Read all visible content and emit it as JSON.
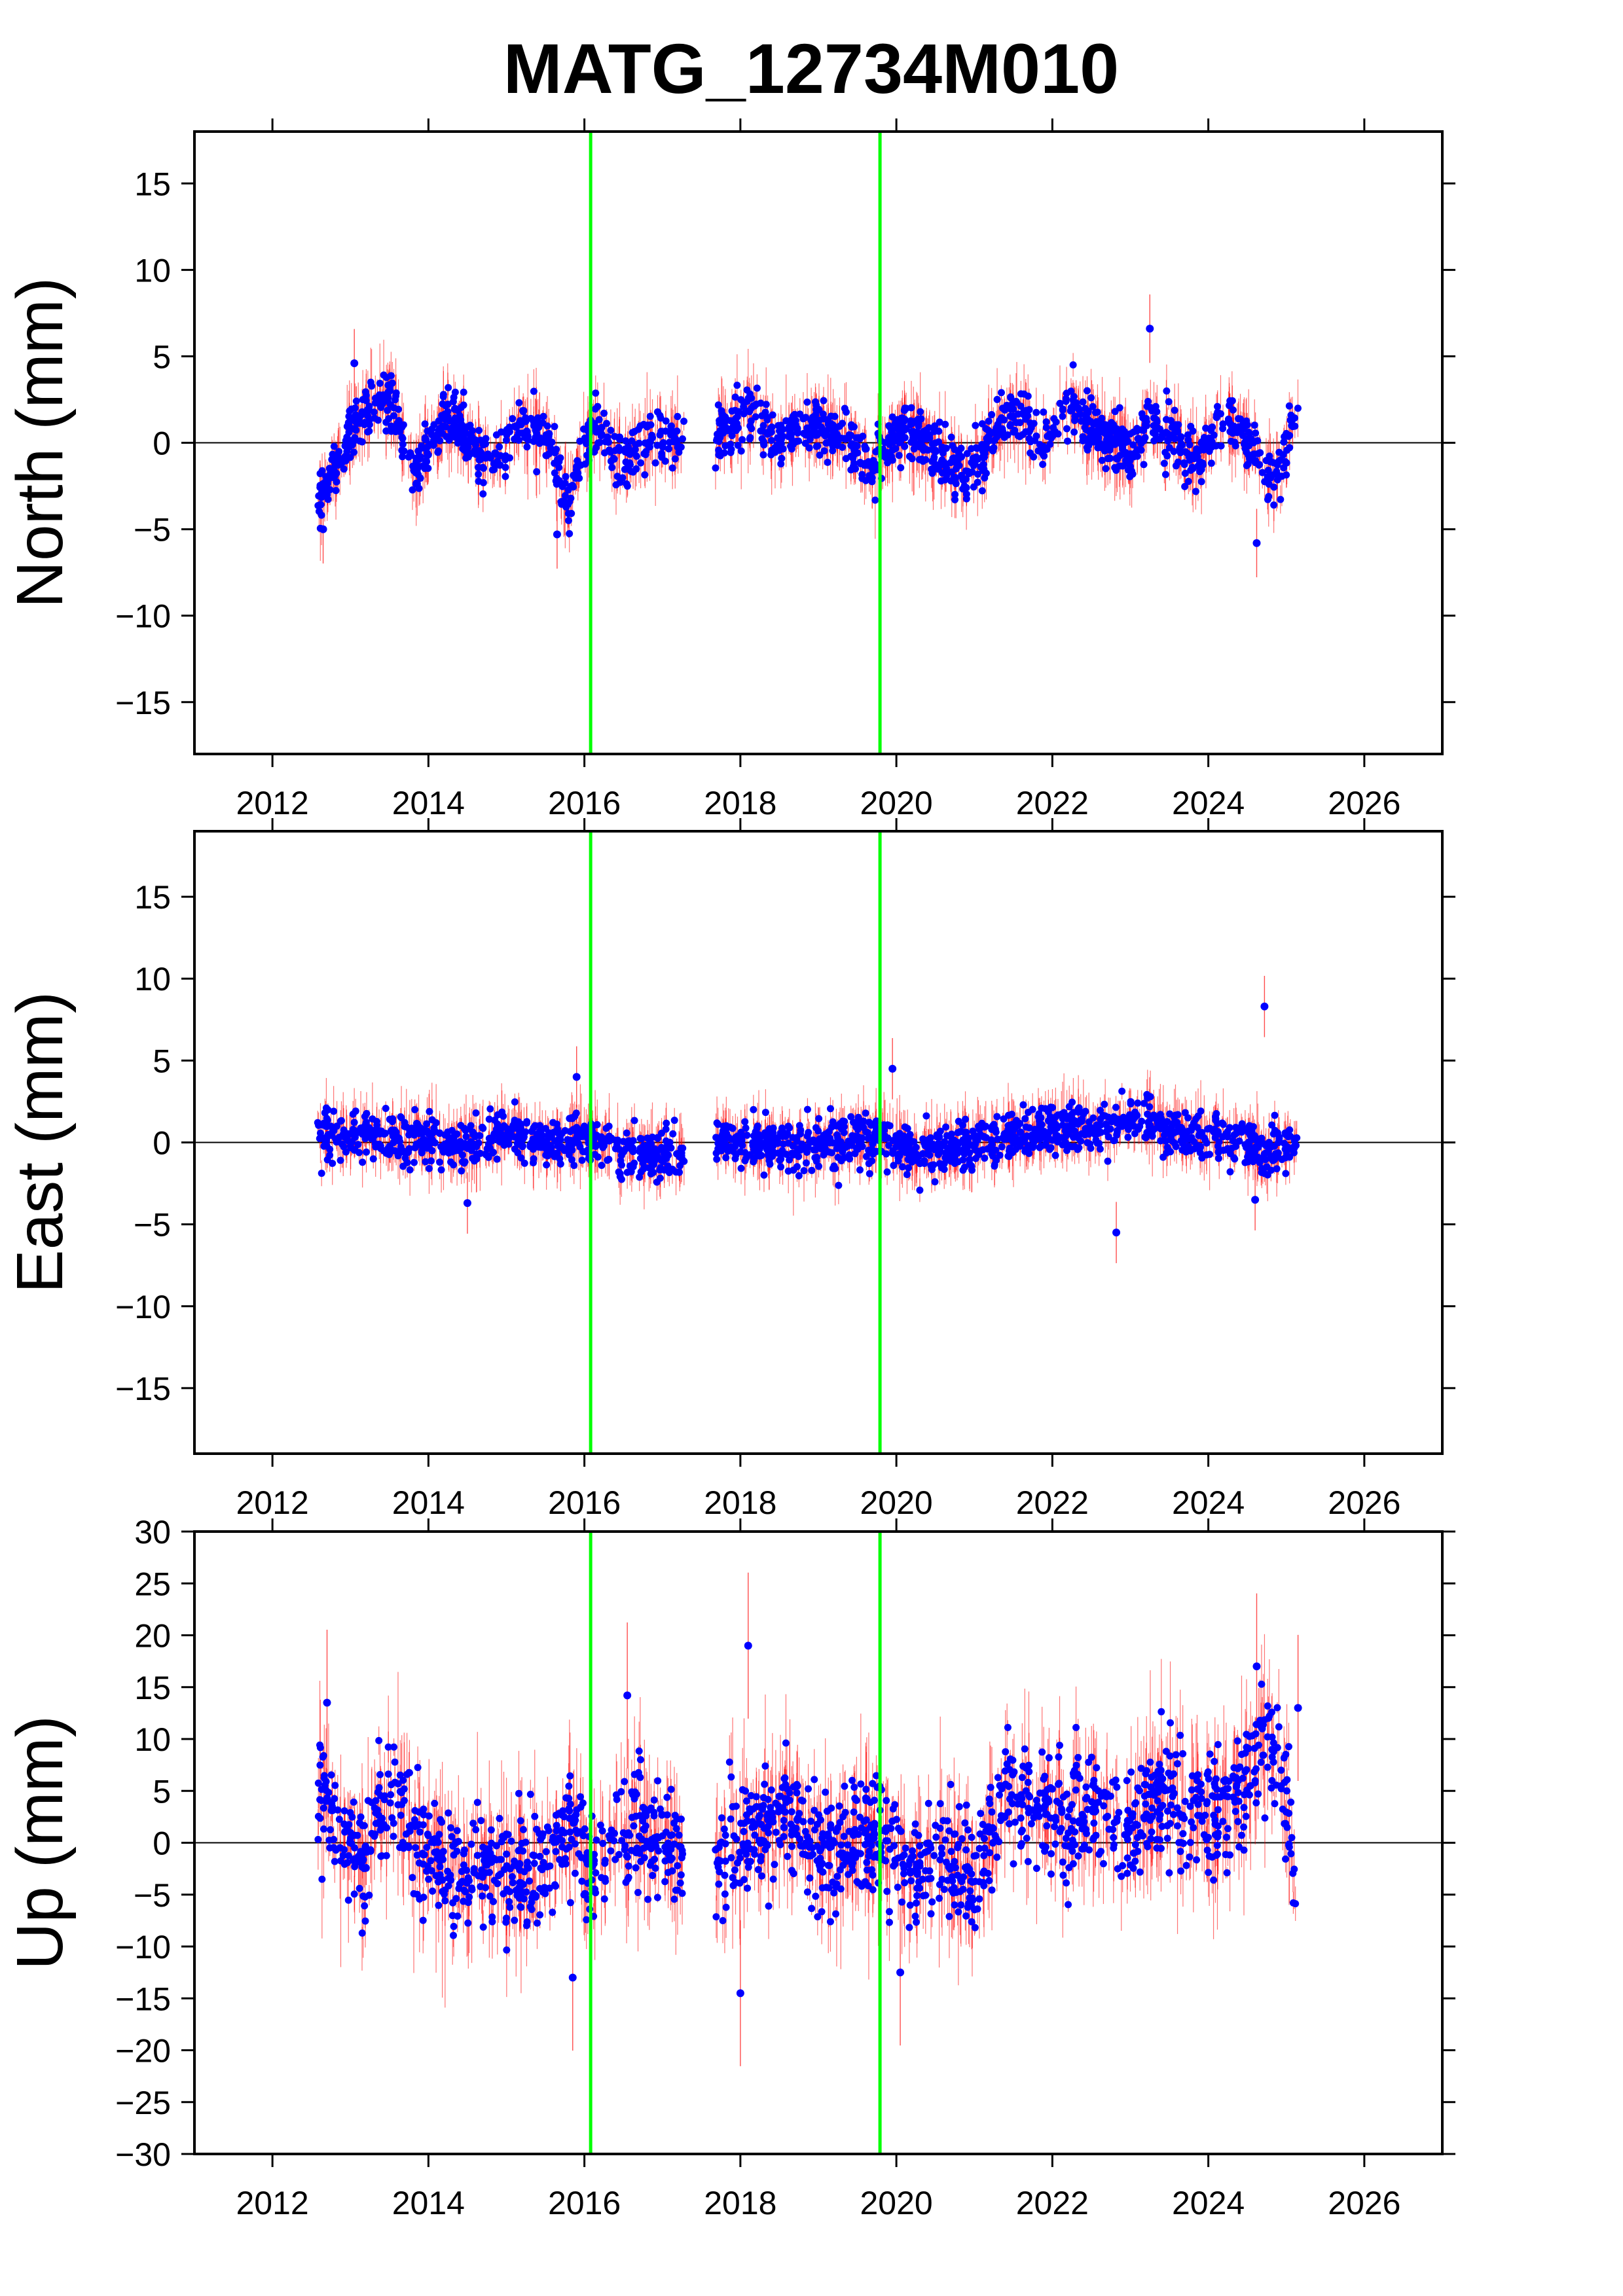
{
  "title": "MATG_12734M010",
  "colors": {
    "point": "#0000ff",
    "error_bar": "#ff0000",
    "event_line": "#00ff00",
    "zero_line": "#000000",
    "frame": "#000000"
  },
  "chart_data": [
    {
      "type": "scatter",
      "ylabel": "North (mm)",
      "xlim": [
        2011.0,
        2027.0
      ],
      "ylim": [
        -18,
        18
      ],
      "xticks": [
        2012,
        2014,
        2016,
        2018,
        2020,
        2022,
        2024,
        2026
      ],
      "yticks": [
        -15,
        -10,
        -5,
        0,
        5,
        10,
        15
      ],
      "event_lines_x": [
        2016.08,
        2019.79
      ],
      "data_span": [
        2012.58,
        2025.15
      ],
      "data_gap": [
        2017.28,
        2017.68
      ],
      "series_name": "",
      "trend_knots_x": [
        2012.58,
        2012.8,
        2013.1,
        2013.5,
        2013.8,
        2014.2,
        2014.5,
        2014.8,
        2015.1,
        2015.5,
        2015.8,
        2016.1,
        2016.5,
        2016.9,
        2017.28,
        2017.68,
        2018.1,
        2018.5,
        2018.9,
        2019.3,
        2019.7,
        2020.1,
        2020.5,
        2020.9,
        2021.3,
        2021.6,
        2021.9,
        2022.2,
        2022.6,
        2023.0,
        2023.3,
        2023.6,
        2023.9,
        2024.2,
        2024.5,
        2024.8,
        2025.15
      ],
      "trend_knots_y": [
        -3.0,
        -1.5,
        1.5,
        2.5,
        -2.0,
        1.5,
        0.5,
        -1.5,
        1.0,
        0.5,
        -3.5,
        1.0,
        -1.0,
        0.5,
        0.0,
        0.0,
        2.0,
        0.0,
        1.0,
        0.5,
        -1.5,
        1.0,
        -0.5,
        -2.0,
        1.0,
        1.5,
        0.0,
        2.5,
        0.5,
        -0.5,
        1.5,
        0.0,
        -1.0,
        1.5,
        0.0,
        -2.5,
        1.5
      ],
      "noise_sd": 0.8,
      "error_bar_sd": 0.9,
      "outliers": [
        [
          2013.05,
          4.6
        ],
        [
          2023.25,
          6.6
        ],
        [
          2024.62,
          -5.8
        ],
        [
          2015.65,
          -5.3
        ],
        [
          2012.65,
          -5.0
        ]
      ]
    },
    {
      "type": "scatter",
      "ylabel": "East (mm)",
      "xlim": [
        2011.0,
        2027.0
      ],
      "ylim": [
        -19,
        19
      ],
      "xticks": [
        2012,
        2014,
        2016,
        2018,
        2020,
        2022,
        2024,
        2026
      ],
      "yticks": [
        -15,
        -10,
        -5,
        0,
        5,
        10,
        15
      ],
      "event_lines_x": [
        2016.08,
        2019.79
      ],
      "data_span": [
        2012.58,
        2025.15
      ],
      "data_gap": [
        2017.28,
        2017.68
      ],
      "series_name": "",
      "trend_knots_x": [
        2012.58,
        2013.0,
        2013.5,
        2014.0,
        2014.5,
        2015.0,
        2015.5,
        2016.0,
        2016.5,
        2017.28,
        2017.68,
        2018.2,
        2018.8,
        2019.4,
        2019.8,
        2020.3,
        2020.8,
        2021.3,
        2021.8,
        2022.3,
        2022.8,
        2023.3,
        2023.8,
        2024.3,
        2024.7,
        2025.15
      ],
      "trend_knots_y": [
        0.3,
        0.6,
        0.2,
        0.3,
        -0.4,
        0.8,
        0.0,
        0.3,
        -0.6,
        -0.8,
        0.3,
        0.0,
        -0.3,
        0.0,
        0.3,
        -0.6,
        -0.3,
        0.3,
        0.6,
        0.9,
        1.3,
        1.1,
        0.3,
        0.3,
        -0.6,
        0.5
      ],
      "noise_sd": 0.75,
      "error_bar_sd": 0.85,
      "outliers": [
        [
          2024.72,
          8.3
        ],
        [
          2022.82,
          -5.5
        ],
        [
          2015.9,
          4.0
        ],
        [
          2019.95,
          4.5
        ],
        [
          2014.5,
          -3.7
        ],
        [
          2024.6,
          -3.5
        ]
      ]
    },
    {
      "type": "scatter",
      "ylabel": "Up (mm)",
      "xlim": [
        2011.0,
        2027.0
      ],
      "ylim": [
        -30,
        30
      ],
      "xticks": [
        2012,
        2014,
        2016,
        2018,
        2020,
        2022,
        2024,
        2026
      ],
      "yticks": [
        -30,
        -25,
        -20,
        -15,
        -10,
        -5,
        0,
        5,
        10,
        15,
        20,
        25,
        30
      ],
      "event_lines_x": [
        2016.08,
        2019.79
      ],
      "data_span": [
        2012.58,
        2025.15
      ],
      "data_gap": [
        2017.28,
        2017.68
      ],
      "series_name": "",
      "trend_knots_x": [
        2012.58,
        2012.8,
        2013.2,
        2013.5,
        2013.9,
        2014.3,
        2014.8,
        2015.3,
        2015.8,
        2016.1,
        2016.5,
        2016.9,
        2017.28,
        2017.68,
        2018.1,
        2018.6,
        2019.0,
        2019.4,
        2019.8,
        2020.2,
        2020.6,
        2021.0,
        2021.4,
        2021.8,
        2022.2,
        2022.6,
        2023.0,
        2023.4,
        2023.8,
        2024.2,
        2024.5,
        2024.8,
        2025.15
      ],
      "trend_knots_y": [
        7.0,
        2.0,
        -2.0,
        5.0,
        -1.0,
        -3.0,
        -2.0,
        -4.0,
        2.0,
        -3.0,
        2.0,
        1.0,
        -2.0,
        -2.0,
        1.0,
        3.0,
        -1.0,
        0.0,
        1.0,
        -3.0,
        -1.0,
        -4.0,
        5.0,
        4.0,
        2.0,
        4.0,
        1.0,
        5.0,
        3.0,
        2.0,
        7.0,
        10.0,
        -4.0
      ],
      "noise_sd": 2.8,
      "error_bar_sd": 3.2,
      "outliers": [
        [
          2018.1,
          19.0
        ],
        [
          2018.0,
          -14.5
        ],
        [
          2015.85,
          -13.0
        ],
        [
          2024.62,
          17.0
        ],
        [
          2025.15,
          13.0
        ],
        [
          2012.7,
          13.5
        ],
        [
          2016.55,
          14.2
        ],
        [
          2020.05,
          -12.5
        ]
      ]
    }
  ]
}
